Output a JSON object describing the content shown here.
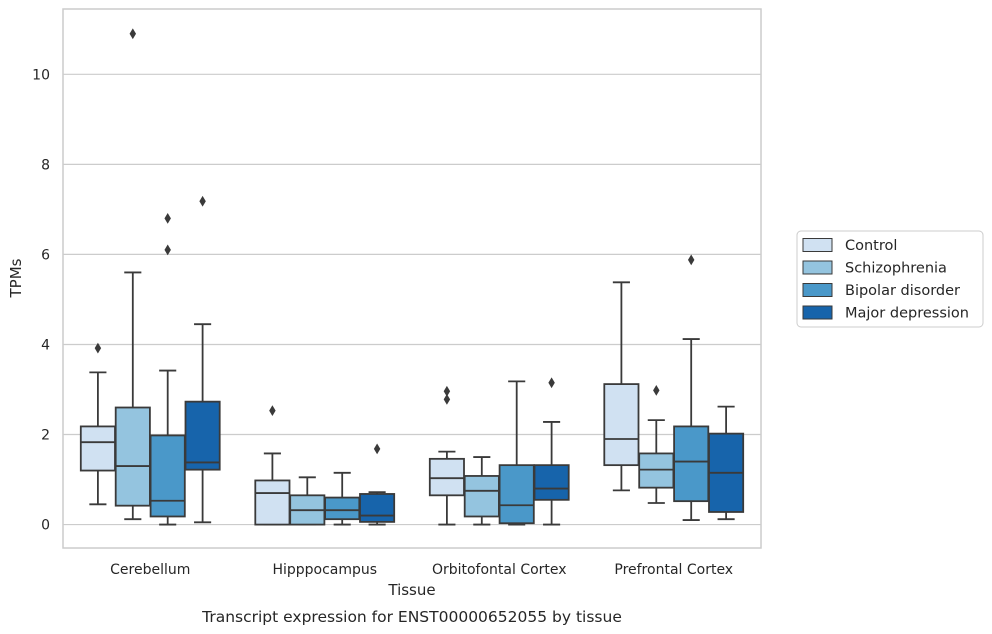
{
  "chart_data": {
    "type": "box",
    "caption": "Transcript expression for ENST00000652055 by tissue",
    "xlabel": "Tissue",
    "ylabel": "TPMs",
    "ylim": [
      -0.52,
      11.45
    ],
    "yticks": [
      0,
      2,
      4,
      6,
      8,
      10
    ],
    "grid": "horizontal",
    "legend_position": "right",
    "categories": [
      "Cerebellum",
      "Hipppocampus",
      "Orbitofontal Cortex",
      "Prefrontal Cortex"
    ],
    "series": [
      {
        "name": "Control",
        "color": "#d0e1f2",
        "boxes": [
          {
            "whislo": 0.45,
            "q1": 1.2,
            "med": 1.83,
            "q3": 2.18,
            "whishi": 3.38,
            "fliers": [
              3.92
            ]
          },
          {
            "whislo": 0.0,
            "q1": 0.0,
            "med": 0.7,
            "q3": 0.98,
            "whishi": 1.58,
            "fliers": [
              2.53
            ]
          },
          {
            "whislo": 0.0,
            "q1": 0.65,
            "med": 1.03,
            "q3": 1.46,
            "whishi": 1.62,
            "fliers": [
              2.78,
              2.96
            ]
          },
          {
            "whislo": 0.76,
            "q1": 1.32,
            "med": 1.9,
            "q3": 3.12,
            "whishi": 5.38,
            "fliers": []
          }
        ]
      },
      {
        "name": "Schizophrenia",
        "color": "#94c4df",
        "boxes": [
          {
            "whislo": 0.12,
            "q1": 0.42,
            "med": 1.3,
            "q3": 2.6,
            "whishi": 5.6,
            "fliers": [
              10.9
            ]
          },
          {
            "whislo": 0.0,
            "q1": 0.0,
            "med": 0.32,
            "q3": 0.65,
            "whishi": 1.05,
            "fliers": []
          },
          {
            "whislo": 0.0,
            "q1": 0.18,
            "med": 0.75,
            "q3": 1.08,
            "whishi": 1.5,
            "fliers": []
          },
          {
            "whislo": 0.48,
            "q1": 0.82,
            "med": 1.22,
            "q3": 1.58,
            "whishi": 2.32,
            "fliers": [
              2.98
            ]
          }
        ]
      },
      {
        "name": "Bipolar disorder",
        "color": "#4a98c9",
        "boxes": [
          {
            "whislo": 0.0,
            "q1": 0.18,
            "med": 0.53,
            "q3": 1.98,
            "whishi": 3.42,
            "fliers": [
              6.1,
              6.8
            ]
          },
          {
            "whislo": 0.0,
            "q1": 0.12,
            "med": 0.32,
            "q3": 0.6,
            "whishi": 1.15,
            "fliers": []
          },
          {
            "whislo": 0.0,
            "q1": 0.03,
            "med": 0.43,
            "q3": 1.32,
            "whishi": 3.18,
            "fliers": []
          },
          {
            "whislo": 0.1,
            "q1": 0.52,
            "med": 1.4,
            "q3": 2.18,
            "whishi": 4.12,
            "fliers": [
              5.88
            ]
          }
        ]
      },
      {
        "name": "Major depression",
        "color": "#1764ab",
        "boxes": [
          {
            "whislo": 0.05,
            "q1": 1.22,
            "med": 1.38,
            "q3": 2.73,
            "whishi": 4.45,
            "fliers": [
              7.18
            ]
          },
          {
            "whislo": 0.0,
            "q1": 0.06,
            "med": 0.2,
            "q3": 0.68,
            "whishi": 0.72,
            "fliers": [
              1.68
            ]
          },
          {
            "whislo": 0.0,
            "q1": 0.55,
            "med": 0.8,
            "q3": 1.32,
            "whishi": 2.28,
            "fliers": [
              3.15
            ]
          },
          {
            "whislo": 0.12,
            "q1": 0.28,
            "med": 1.15,
            "q3": 2.02,
            "whishi": 2.62,
            "fliers": []
          }
        ]
      }
    ],
    "colors": {
      "edge": "#3a3a3a",
      "grid": "#cccccc",
      "frame": "#cccccc",
      "text": "#262626"
    }
  }
}
